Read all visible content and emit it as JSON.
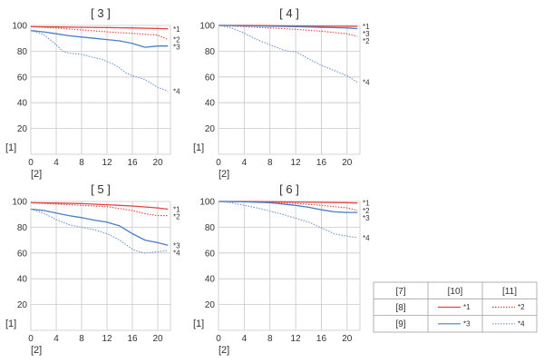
{
  "colors": {
    "red": "#e8413e",
    "blue": "#4a7ec4",
    "lightblue": "#6d96d6",
    "grid": "#c8c8c8"
  },
  "chart_data": [
    {
      "type": "line",
      "title": "[ 3 ]",
      "ylabel": "[1]",
      "xlabel": "[2]",
      "xlim": [
        0,
        22
      ],
      "ylim": [
        0,
        100
      ],
      "xticks": [
        0,
        4,
        8,
        12,
        16,
        20
      ],
      "yticks": [
        20,
        40,
        60,
        80,
        100
      ],
      "grid": true,
      "series": [
        {
          "name": "*1",
          "color": "red",
          "style": "solid",
          "x": [
            0,
            4,
            8,
            12,
            16,
            20,
            21.6
          ],
          "y": [
            99,
            98.8,
            98.5,
            98.3,
            98,
            97.6,
            97.3
          ]
        },
        {
          "name": "*2",
          "color": "red",
          "style": "dotted",
          "x": [
            0,
            4,
            8,
            12,
            16,
            20,
            21.6
          ],
          "y": [
            99,
            98,
            96.5,
            95,
            93.8,
            92.5,
            89
          ]
        },
        {
          "name": "*3",
          "color": "blue",
          "style": "solid",
          "x": [
            0,
            2,
            4,
            6,
            8,
            10,
            12,
            14,
            16,
            18,
            20,
            21.6
          ],
          "y": [
            96,
            95,
            93.5,
            92,
            91,
            90,
            89,
            88,
            86,
            83,
            84,
            84
          ]
        },
        {
          "name": "*4",
          "color": "lightblue",
          "style": "dotted",
          "x": [
            0,
            2,
            4,
            5,
            6,
            8,
            10,
            11,
            12,
            13,
            14,
            15,
            16,
            18,
            19,
            20,
            21.6
          ],
          "y": [
            96,
            93,
            85,
            80,
            78.5,
            77.5,
            75,
            74,
            72,
            70,
            67,
            63,
            61,
            58,
            55,
            52,
            49
          ]
        }
      ]
    },
    {
      "type": "line",
      "title": "[ 4 ]",
      "ylabel": "[1]",
      "xlabel": "[2]",
      "xlim": [
        0,
        22
      ],
      "ylim": [
        0,
        100
      ],
      "xticks": [
        0,
        4,
        8,
        12,
        16,
        20
      ],
      "yticks": [
        20,
        40,
        60,
        80,
        100
      ],
      "grid": true,
      "series": [
        {
          "name": "*1",
          "color": "red",
          "style": "solid",
          "x": [
            0,
            4,
            8,
            12,
            16,
            20,
            21.6
          ],
          "y": [
            100,
            100,
            99.8,
            99.6,
            99.4,
            99.3,
            99.2
          ]
        },
        {
          "name": "*2",
          "color": "red",
          "style": "dotted",
          "x": [
            0,
            4,
            8,
            12,
            16,
            20,
            21.6
          ],
          "y": [
            100,
            99,
            98,
            97,
            95.5,
            93.5,
            91.5
          ]
        },
        {
          "name": "*3",
          "color": "blue",
          "style": "solid",
          "x": [
            0,
            4,
            8,
            12,
            16,
            20,
            21.6
          ],
          "y": [
            100,
            99.8,
            99.4,
            99,
            98.5,
            98,
            97.5
          ]
        },
        {
          "name": "*4",
          "color": "lightblue",
          "style": "dotted",
          "x": [
            0,
            2,
            4,
            6,
            8,
            10,
            11,
            12,
            13,
            14,
            16,
            18,
            20,
            21.6
          ],
          "y": [
            100,
            98,
            94,
            89,
            85,
            81,
            80,
            79.5,
            77,
            74,
            69,
            65,
            61,
            56
          ]
        }
      ]
    },
    {
      "type": "line",
      "title": "[ 5 ]",
      "ylabel": "[1]",
      "xlabel": "[2]",
      "xlim": [
        0,
        22
      ],
      "ylim": [
        0,
        100
      ],
      "xticks": [
        0,
        4,
        8,
        12,
        16,
        20
      ],
      "yticks": [
        20,
        40,
        60,
        80,
        100
      ],
      "grid": true,
      "series": [
        {
          "name": "*1",
          "color": "red",
          "style": "solid",
          "x": [
            0,
            4,
            8,
            12,
            16,
            20,
            21.6
          ],
          "y": [
            99,
            98.7,
            98.3,
            97.5,
            96.5,
            95,
            94
          ]
        },
        {
          "name": "*2",
          "color": "red",
          "style": "dotted",
          "x": [
            0,
            4,
            8,
            12,
            16,
            18,
            20,
            21.6
          ],
          "y": [
            99,
            98,
            97,
            96,
            93,
            90.5,
            89,
            89
          ]
        },
        {
          "name": "*3",
          "color": "blue",
          "style": "solid",
          "x": [
            0,
            2,
            4,
            6,
            8,
            10,
            12,
            14,
            16,
            18,
            20,
            21.6
          ],
          "y": [
            94,
            93,
            91,
            89,
            87.5,
            85.5,
            84,
            81,
            75,
            70,
            68,
            66
          ]
        },
        {
          "name": "*4",
          "color": "lightblue",
          "style": "dotted",
          "x": [
            0,
            2,
            4,
            6,
            8,
            10,
            12,
            14,
            16,
            17,
            18,
            20,
            21.6
          ],
          "y": [
            94,
            91,
            86,
            82,
            80,
            78,
            75,
            70,
            63,
            61,
            60,
            61,
            62
          ]
        }
      ]
    },
    {
      "type": "line",
      "title": "[ 6 ]",
      "ylabel": "[1]",
      "xlabel": "[2]",
      "xlim": [
        0,
        22
      ],
      "ylim": [
        0,
        100
      ],
      "xticks": [
        0,
        4,
        8,
        12,
        16,
        20
      ],
      "yticks": [
        20,
        40,
        60,
        80,
        100
      ],
      "grid": true,
      "series": [
        {
          "name": "*1",
          "color": "red",
          "style": "solid",
          "x": [
            0,
            4,
            8,
            12,
            16,
            20,
            21.6
          ],
          "y": [
            100,
            100,
            99.8,
            99.6,
            99.3,
            99,
            98.8
          ]
        },
        {
          "name": "*2",
          "color": "red",
          "style": "dotted",
          "x": [
            0,
            4,
            8,
            12,
            16,
            20,
            21.6
          ],
          "y": [
            100,
            99.8,
            99.3,
            98.5,
            97,
            95,
            93
          ]
        },
        {
          "name": "*3",
          "color": "blue",
          "style": "solid",
          "x": [
            0,
            4,
            8,
            10,
            12,
            14,
            16,
            18,
            20,
            21.6
          ],
          "y": [
            100,
            99.8,
            99,
            98,
            97,
            95.5,
            93.5,
            92,
            91.5,
            91.5
          ]
        },
        {
          "name": "*4",
          "color": "lightblue",
          "style": "dotted",
          "x": [
            0,
            2,
            4,
            6,
            8,
            10,
            12,
            14,
            16,
            18,
            20,
            21.6
          ],
          "y": [
            100,
            99,
            97,
            95,
            92.5,
            90,
            87,
            84,
            79.5,
            75,
            73,
            72
          ]
        }
      ]
    }
  ],
  "legend": {
    "headers": [
      "[7]",
      "[10]",
      "[11]"
    ],
    "rows": [
      {
        "label": "[8]",
        "solid": {
          "name": "*1",
          "color": "red"
        },
        "dotted": {
          "name": "*2",
          "color": "red"
        }
      },
      {
        "label": "[9]",
        "solid": {
          "name": "*3",
          "color": "blue"
        },
        "dotted": {
          "name": "*4",
          "color": "lightblue"
        }
      }
    ]
  }
}
